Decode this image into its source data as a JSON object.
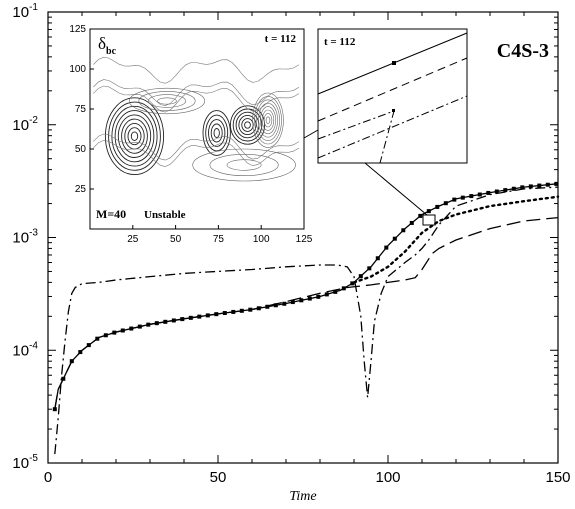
{
  "chart_data": [
    {
      "type": "line",
      "title": "",
      "panel_label": "C4S-3",
      "xlabel": "Time",
      "ylabel": "",
      "xlim": [
        0,
        150
      ],
      "ylim": [
        1e-05,
        0.1
      ],
      "y_scale": "log",
      "grid": false,
      "legend": "none",
      "x_ticks": [
        "0",
        "50",
        "100",
        "150"
      ],
      "y_ticks": [
        {
          "base": "10",
          "exp": "-5"
        },
        {
          "base": "10",
          "exp": "-4"
        },
        {
          "base": "10",
          "exp": "-3"
        },
        {
          "base": "10",
          "exp": "-2"
        },
        {
          "base": "10",
          "exp": "-1"
        }
      ],
      "series": [
        {
          "style": "solid-square-markers",
          "x": [
            2,
            3,
            5,
            7,
            10,
            15,
            20,
            30,
            40,
            50,
            60,
            70,
            80,
            86,
            90,
            95,
            100,
            105,
            110,
            115,
            120,
            130,
            140,
            150
          ],
          "y": [
            3e-05,
            4.5e-05,
            6e-05,
            8e-05,
            0.0001,
            0.00013,
            0.000145,
            0.00017,
            0.00019,
            0.00021,
            0.00023,
            0.00026,
            0.0003,
            0.00034,
            0.0004,
            0.00055,
            0.00085,
            0.0012,
            0.0016,
            0.0019,
            0.0022,
            0.0025,
            0.0028,
            0.003
          ]
        },
        {
          "style": "long-dash",
          "x": [
            2,
            3,
            5,
            7,
            10,
            15,
            20,
            30,
            40,
            50,
            60,
            70,
            80,
            88,
            95,
            100,
            105,
            108,
            110,
            113,
            115,
            120,
            130,
            140,
            150
          ],
          "y": [
            3e-05,
            4.5e-05,
            6e-05,
            8e-05,
            0.0001,
            0.00013,
            0.000145,
            0.00017,
            0.00019,
            0.00021,
            0.00023,
            0.00027,
            0.00032,
            0.00036,
            0.00038,
            0.0004,
            0.00042,
            0.00044,
            0.00052,
            0.00072,
            0.0008,
            0.00095,
            0.0012,
            0.0014,
            0.0015
          ]
        },
        {
          "style": "dotted",
          "x": [
            90,
            95,
            100,
            105,
            110,
            115,
            120,
            130,
            140,
            150
          ],
          "y": [
            0.0004,
            0.00045,
            0.00055,
            0.00075,
            0.0011,
            0.0014,
            0.0016,
            0.0019,
            0.0021,
            0.0023
          ]
        },
        {
          "style": "dash-dot",
          "x": [
            2,
            3,
            4,
            5,
            6,
            7,
            8,
            10,
            15,
            20,
            30,
            40,
            50,
            60,
            70,
            80,
            85,
            88,
            90,
            92,
            93,
            94,
            95,
            96,
            98,
            100,
            105,
            108,
            110,
            112,
            115,
            120,
            130,
            140,
            150
          ],
          "y": [
            1.2e-05,
            2.5e-05,
            6e-05,
            0.00012,
            0.00022,
            0.00032,
            0.00036,
            0.00039,
            0.0004,
            0.00042,
            0.00045,
            0.00048,
            0.0005,
            0.00052,
            0.00055,
            0.00057,
            0.00057,
            0.00055,
            0.00045,
            0.0002,
            8e-05,
            3.8e-05,
            8e-05,
            0.00018,
            0.00032,
            0.00045,
            0.0006,
            0.0007,
            0.0008,
            0.00095,
            0.0013,
            0.0019,
            0.0024,
            0.0027,
            0.0028
          ]
        }
      ]
    },
    {
      "type": "contour",
      "panel_label": "δbc",
      "symbol": "δ",
      "subscript": "bc",
      "time_label": "t = 112",
      "annotation_left": "M=40",
      "annotation_right": "Unstable",
      "xlim": [
        0,
        125
      ],
      "ylim": [
        0,
        125
      ],
      "x_ticks": [
        "25",
        "50",
        "75",
        "100",
        "125"
      ],
      "y_ticks": [
        "25",
        "50",
        "75",
        "100",
        "125"
      ]
    },
    {
      "type": "line",
      "time_label": "t = 112",
      "description_free": true
    }
  ]
}
